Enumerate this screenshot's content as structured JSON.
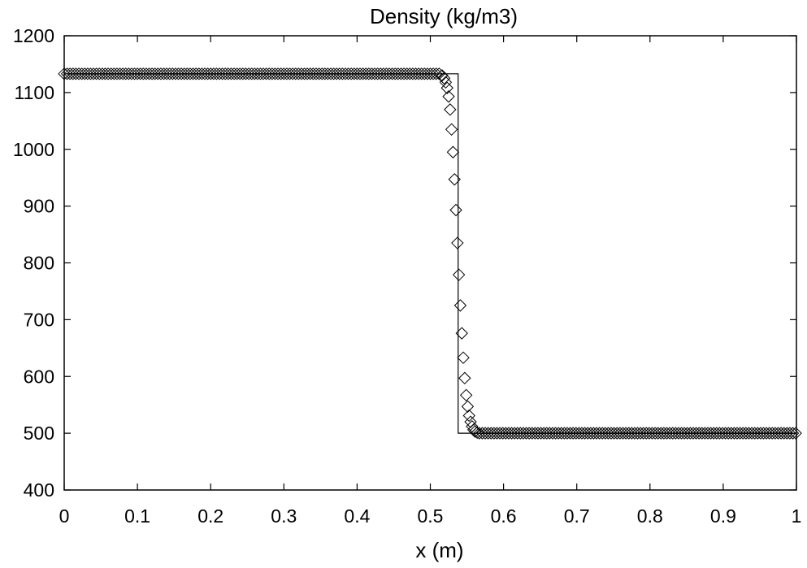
{
  "chart_data": {
    "type": "line",
    "title": "Density (kg/m3)",
    "xlabel": "x (m)",
    "ylabel": "",
    "xlim": [
      0,
      1
    ],
    "ylim": [
      400,
      1200
    ],
    "xticks": [
      "0",
      "0.1",
      "0.2",
      "0.3",
      "0.4",
      "0.5",
      "0.6",
      "0.7",
      "0.8",
      "0.9",
      "1"
    ],
    "yticks": [
      "400",
      "500",
      "600",
      "700",
      "800",
      "900",
      "1000",
      "1100",
      "1200"
    ],
    "grid": false,
    "legend": false,
    "series": [
      {
        "type": "line",
        "color": "#000000",
        "x": [
          0,
          0.538,
          0.538,
          1
        ],
        "y": [
          1133,
          1133,
          500,
          500
        ]
      },
      {
        "type": "scatter",
        "marker": "diamond",
        "color": "#000000",
        "plateau_left": {
          "x_from": 0,
          "x_to": 0.513,
          "step": 0.004,
          "y": 1133
        },
        "plateau_right": {
          "x_from": 0.567,
          "x_to": 1,
          "step": 0.004,
          "y": 500
        },
        "transition": [
          [
            0.516,
            1130
          ],
          [
            0.519,
            1125
          ],
          [
            0.521,
            1118
          ],
          [
            0.523,
            1108
          ],
          [
            0.525,
            1093
          ],
          [
            0.527,
            1070
          ],
          [
            0.529,
            1035
          ],
          [
            0.531,
            995
          ],
          [
            0.533,
            947
          ],
          [
            0.535,
            893
          ],
          [
            0.537,
            835
          ],
          [
            0.539,
            779
          ],
          [
            0.541,
            725
          ],
          [
            0.543,
            676
          ],
          [
            0.545,
            633
          ],
          [
            0.547,
            597
          ],
          [
            0.549,
            567
          ],
          [
            0.551,
            547
          ],
          [
            0.553,
            531
          ],
          [
            0.555,
            520
          ],
          [
            0.557,
            512
          ],
          [
            0.559,
            506
          ],
          [
            0.561,
            503
          ],
          [
            0.564,
            501
          ]
        ]
      }
    ]
  }
}
